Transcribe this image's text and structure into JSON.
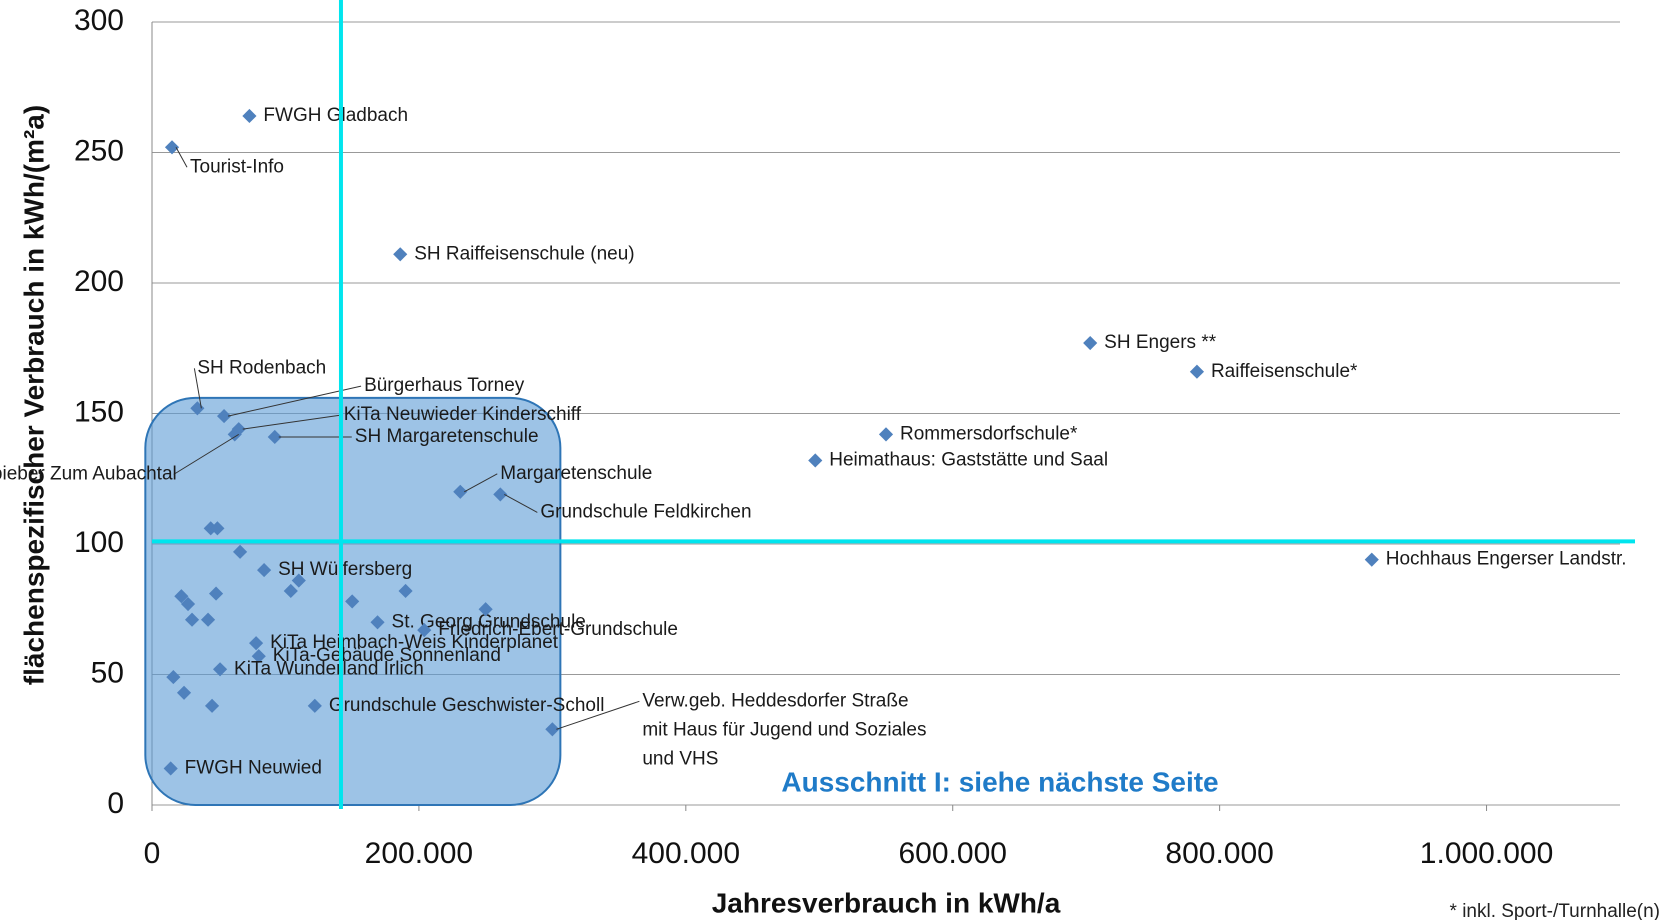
{
  "chart_data": {
    "type": "scatter",
    "x_label": "Jahresverbrauch in kWh/a",
    "y_label": "flächenspezifischer Verbrauch in kWh/(m²a)",
    "color": "#4f81bd",
    "xlim": [
      0,
      1100000
    ],
    "ylim": [
      0,
      300
    ],
    "xticks": [
      0,
      {
        "value": 200000,
        "label": "200.000"
      },
      {
        "value": 400000,
        "label": "400.000"
      },
      {
        "value": 600000,
        "label": "600.000"
      },
      {
        "value": 800000,
        "label": "800.000"
      },
      {
        "value": 1000000,
        "label": "1.000.000"
      }
    ],
    "yticks": [
      0,
      50,
      100,
      150,
      200,
      250,
      300
    ],
    "grid": true,
    "ref_lines": {
      "x": 141600,
      "y": 101,
      "color": "#00e5ee"
    },
    "highlight": {
      "xlim": [
        -5000,
        306000
      ],
      "ylim": [
        0,
        156
      ],
      "color": "#5b9bd5"
    },
    "annotation": "Ausschnitt I: siehe nächste Seite",
    "footnote": "* inkl. Sport-/Turnhalle(n)",
    "points": [
      {
        "label": [
          "FWGH Gladbach"
        ],
        "x": 73000,
        "y": 264
      },
      {
        "label": [
          "Tourist-Info"
        ],
        "x": 15000,
        "y": 252
      },
      {
        "label": [
          "SH Raiffeisenschule (neu)"
        ],
        "x": 186000,
        "y": 211
      },
      {
        "label": [
          "SH Engers **"
        ],
        "x": 703000,
        "y": 177
      },
      {
        "label": [
          "Raiffeisenschule*"
        ],
        "x": 783000,
        "y": 166
      },
      {
        "label": [
          "Rommersdorfschule*"
        ],
        "x": 550000,
        "y": 142
      },
      {
        "label": [
          "Heimathaus: Gaststätte und Saal"
        ],
        "x": 497000,
        "y": 132
      },
      {
        "label": [
          "Hochhaus Engerser Landstr."
        ],
        "x": 914000,
        "y": 94
      },
      {
        "label": [
          "SH Rodenbach"
        ],
        "x": 34000,
        "y": 152
      },
      {
        "label": [
          "Bürgerhaus Torney"
        ],
        "x": 54000,
        "y": 149
      },
      {
        "label": [
          "KiTa Neuwieder Kinderschiff"
        ],
        "x": 65000,
        "y": 144
      },
      {
        "label": [
          "SH Margaretenschule"
        ],
        "x": 92000,
        "y": 141
      },
      {
        "label": [
          "KiTa Oberbieber Zum Aubachtal"
        ],
        "x": 62000,
        "y": 142
      },
      {
        "label": [
          "Margaretenschule"
        ],
        "x": 231000,
        "y": 120
      },
      {
        "label": [
          "Grundschule Feldkirchen"
        ],
        "x": 261000,
        "y": 119
      },
      {
        "label": [
          "Verw.geb. Heddesdorfer Straße",
          "mit Haus für Jugend und Soziales",
          "und VHS"
        ],
        "x": 300000,
        "y": 29
      },
      {
        "label": [
          "FWGH Neuwied"
        ],
        "x": 14000,
        "y": 14
      },
      {
        "label": [
          "SH Wülfersberg"
        ],
        "x": 84000,
        "y": 90
      },
      {
        "label": [
          "St. Georg Grundschule"
        ],
        "x": 169000,
        "y": 70
      },
      {
        "label": [
          "Friedrich-Ebert-Grundschule"
        ],
        "x": 204000,
        "y": 67
      },
      {
        "label": [
          "KiTa Heimbach-Weis Kinderplanet"
        ],
        "x": 78000,
        "y": 62
      },
      {
        "label": [
          "KiTa-Gebäude Sonnenland"
        ],
        "x": 80000,
        "y": 57
      },
      {
        "label": [
          "KiTa Wunderland Irlich"
        ],
        "x": 51000,
        "y": 52
      },
      {
        "label": [
          "Grundschule Geschwister-Scholl"
        ],
        "x": 122000,
        "y": 38
      },
      {
        "label": null,
        "x": 44000,
        "y": 106
      },
      {
        "label": null,
        "x": 49000,
        "y": 106
      },
      {
        "label": null,
        "x": 66000,
        "y": 97
      },
      {
        "label": null,
        "x": 22000,
        "y": 80
      },
      {
        "label": null,
        "x": 27000,
        "y": 77
      },
      {
        "label": null,
        "x": 30000,
        "y": 71
      },
      {
        "label": null,
        "x": 42000,
        "y": 71
      },
      {
        "label": null,
        "x": 48000,
        "y": 81
      },
      {
        "label": null,
        "x": 104000,
        "y": 82
      },
      {
        "label": null,
        "x": 110000,
        "y": 86
      },
      {
        "label": null,
        "x": 16000,
        "y": 49
      },
      {
        "label": null,
        "x": 24000,
        "y": 43
      },
      {
        "label": null,
        "x": 45000,
        "y": 38
      },
      {
        "label": null,
        "x": 150000,
        "y": 78
      },
      {
        "label": null,
        "x": 190000,
        "y": 82
      },
      {
        "label": null,
        "x": 250000,
        "y": 75
      }
    ]
  }
}
